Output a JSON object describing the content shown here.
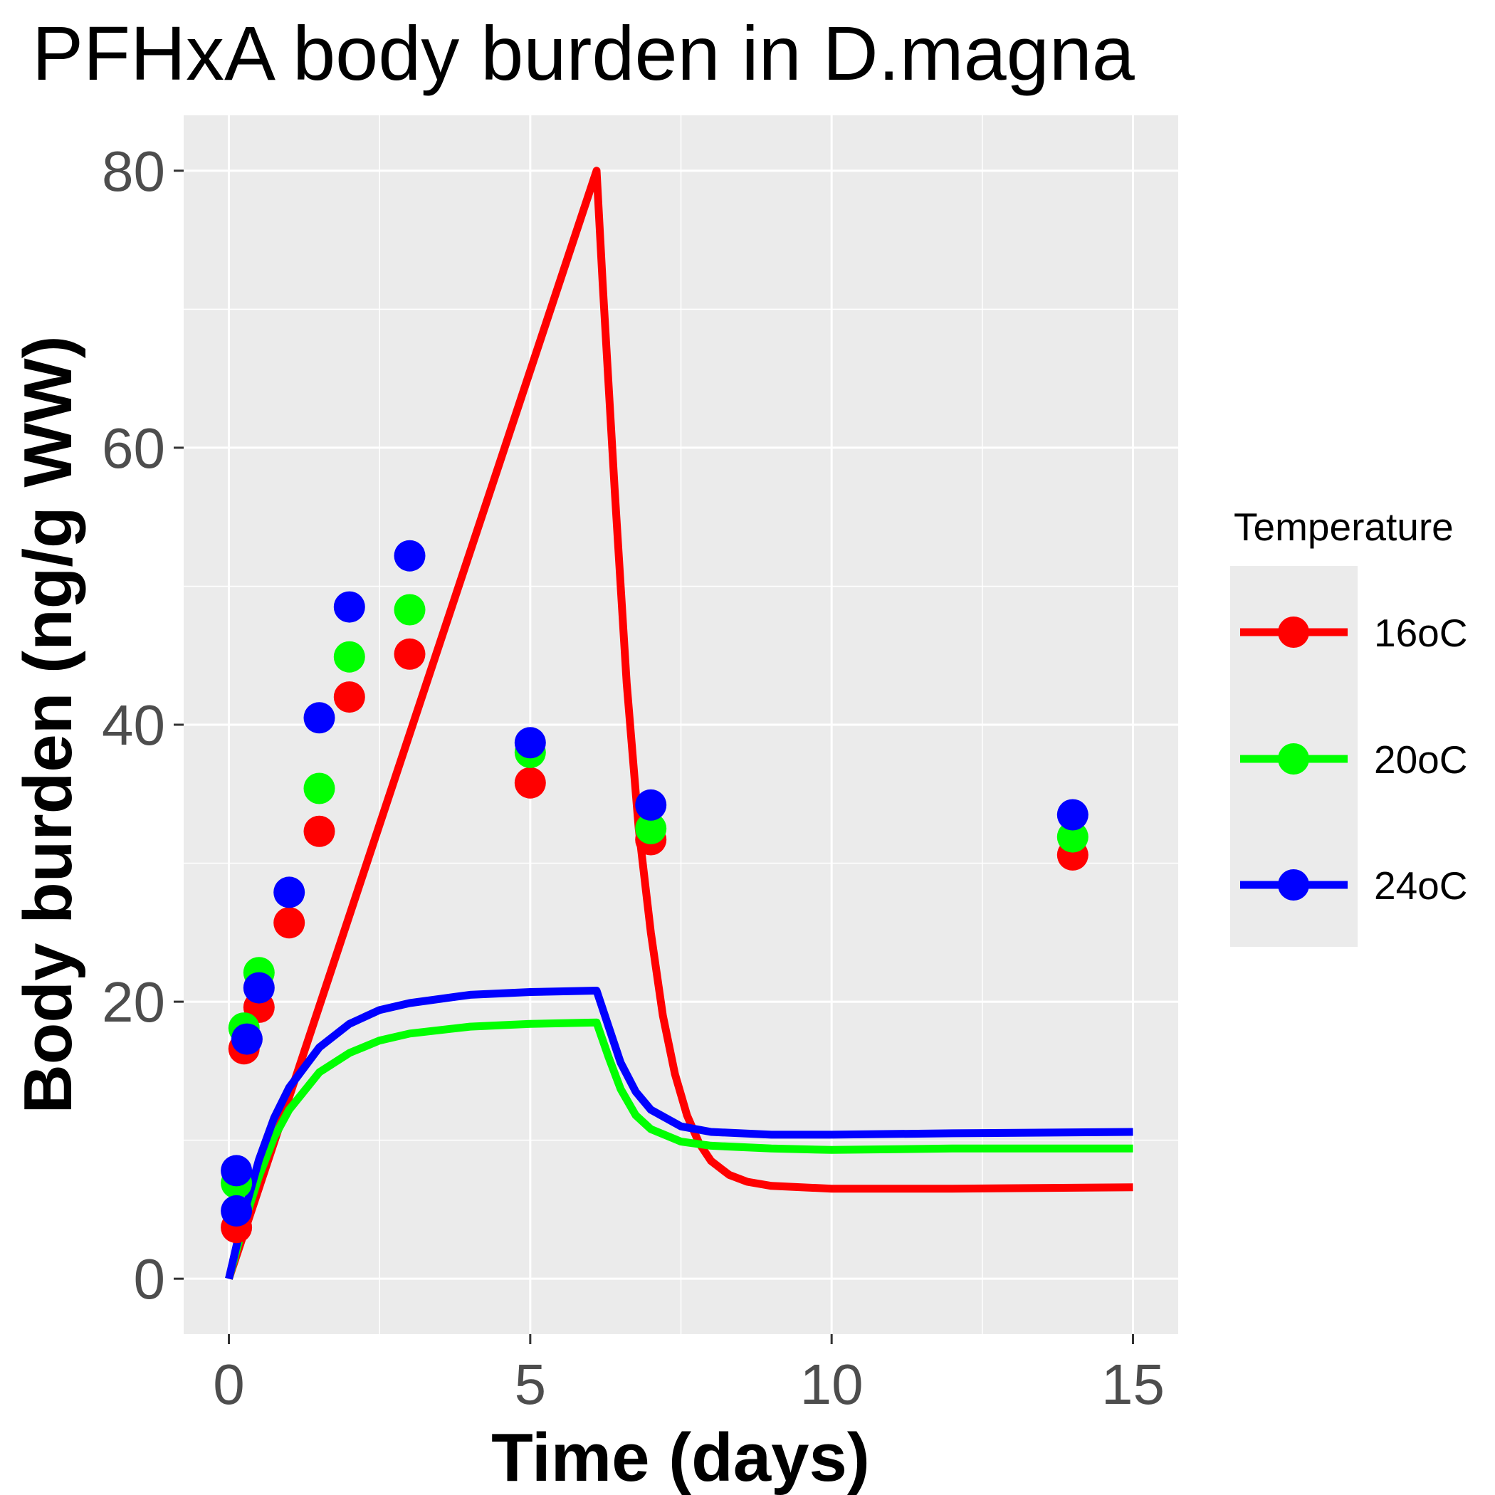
{
  "chart_data": {
    "type": "line",
    "title": "PFHxA body burden in D.magna",
    "xlabel": "Time (days)",
    "ylabel": "Body burden (ng/g WW)",
    "xlim": [
      -0.75,
      15.75
    ],
    "ylim": [
      -4,
      84
    ],
    "x_ticks": [
      0,
      5,
      10,
      15
    ],
    "x_tick_labels": [
      "0",
      "5",
      "10",
      "15"
    ],
    "y_ticks": [
      0,
      20,
      40,
      60,
      80
    ],
    "y_tick_labels": [
      "0",
      "20",
      "40",
      "60",
      "80"
    ],
    "grid": true,
    "background": "#ebebeb",
    "legend": {
      "title": "Temperature",
      "position": "right"
    },
    "series": [
      {
        "name": "16oC",
        "color": "#ff0000",
        "points": [
          {
            "x": 0.125,
            "y": 3.7
          },
          {
            "x": 0.25,
            "y": 16.6
          },
          {
            "x": 0.5,
            "y": 19.6
          },
          {
            "x": 1,
            "y": 25.7
          },
          {
            "x": 1.5,
            "y": 32.3
          },
          {
            "x": 2,
            "y": 42.0
          },
          {
            "x": 3,
            "y": 45.1
          },
          {
            "x": 5,
            "y": 35.8
          },
          {
            "x": 7,
            "y": 31.7
          },
          {
            "x": 14,
            "y": 30.6
          }
        ],
        "line": [
          [
            0,
            0
          ],
          [
            6.1,
            80.0
          ],
          [
            6.2,
            72.0
          ],
          [
            6.4,
            57.0
          ],
          [
            6.6,
            43.0
          ],
          [
            6.8,
            32.5
          ],
          [
            7.0,
            25.0
          ],
          [
            7.2,
            19.0
          ],
          [
            7.4,
            14.8
          ],
          [
            7.6,
            11.8
          ],
          [
            7.8,
            9.8
          ],
          [
            8.0,
            8.5
          ],
          [
            8.3,
            7.5
          ],
          [
            8.6,
            7.0
          ],
          [
            9.0,
            6.7
          ],
          [
            10.0,
            6.5
          ],
          [
            12.0,
            6.5
          ],
          [
            15.0,
            6.6
          ]
        ]
      },
      {
        "name": "20oC",
        "color": "#00ff00",
        "points": [
          {
            "x": 0.125,
            "y": 6.9
          },
          {
            "x": 0.25,
            "y": 18.1
          },
          {
            "x": 0.5,
            "y": 22.1
          },
          {
            "x": 1.5,
            "y": 35.4
          },
          {
            "x": 2,
            "y": 44.9
          },
          {
            "x": 3,
            "y": 48.3
          },
          {
            "x": 5,
            "y": 38.0
          },
          {
            "x": 7,
            "y": 32.5
          },
          {
            "x": 14,
            "y": 31.9
          }
        ],
        "line": [
          [
            0,
            0
          ],
          [
            0.25,
            4.0
          ],
          [
            0.5,
            7.4
          ],
          [
            0.75,
            10.2
          ],
          [
            1.0,
            12.2
          ],
          [
            1.5,
            14.9
          ],
          [
            2.0,
            16.3
          ],
          [
            2.5,
            17.2
          ],
          [
            3.0,
            17.7
          ],
          [
            4.0,
            18.2
          ],
          [
            5.0,
            18.4
          ],
          [
            6.1,
            18.5
          ],
          [
            6.3,
            16.0
          ],
          [
            6.5,
            13.7
          ],
          [
            6.75,
            11.8
          ],
          [
            7.0,
            10.8
          ],
          [
            7.5,
            9.9
          ],
          [
            8.0,
            9.6
          ],
          [
            9.0,
            9.4
          ],
          [
            10.0,
            9.3
          ],
          [
            12.0,
            9.4
          ],
          [
            15.0,
            9.4
          ]
        ]
      },
      {
        "name": "24oC",
        "color": "#0000ff",
        "points": [
          {
            "x": 0.125,
            "y": 4.9
          },
          {
            "x": 0.125,
            "y": 7.8
          },
          {
            "x": 0.3,
            "y": 17.3
          },
          {
            "x": 0.5,
            "y": 21.0
          },
          {
            "x": 1,
            "y": 27.9
          },
          {
            "x": 1.5,
            "y": 40.5
          },
          {
            "x": 2,
            "y": 48.5
          },
          {
            "x": 3,
            "y": 52.2
          },
          {
            "x": 5,
            "y": 38.7
          },
          {
            "x": 7,
            "y": 34.2
          },
          {
            "x": 14,
            "y": 33.5
          }
        ],
        "line": [
          [
            0,
            0
          ],
          [
            0.25,
            4.7
          ],
          [
            0.5,
            8.6
          ],
          [
            0.75,
            11.6
          ],
          [
            1.0,
            13.8
          ],
          [
            1.5,
            16.7
          ],
          [
            2.0,
            18.4
          ],
          [
            2.5,
            19.4
          ],
          [
            3.0,
            19.9
          ],
          [
            4.0,
            20.5
          ],
          [
            5.0,
            20.7
          ],
          [
            6.1,
            20.8
          ],
          [
            6.3,
            18.2
          ],
          [
            6.5,
            15.6
          ],
          [
            6.75,
            13.5
          ],
          [
            7.0,
            12.2
          ],
          [
            7.5,
            11.0
          ],
          [
            8.0,
            10.6
          ],
          [
            9.0,
            10.4
          ],
          [
            10.0,
            10.4
          ],
          [
            12.0,
            10.5
          ],
          [
            15.0,
            10.6
          ]
        ]
      }
    ]
  }
}
